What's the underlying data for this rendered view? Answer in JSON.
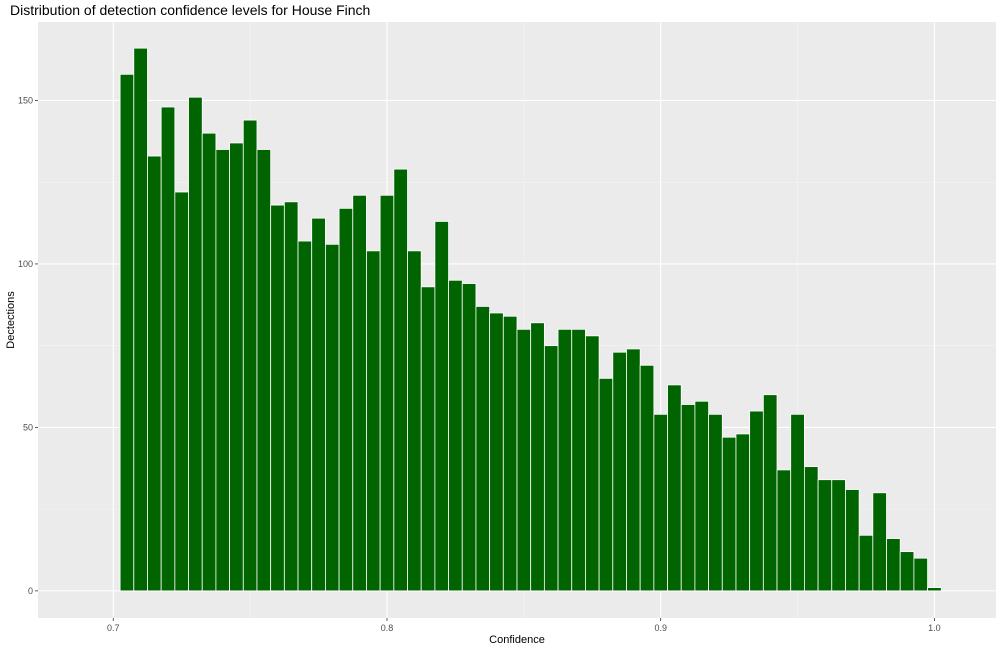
{
  "chart_data": {
    "type": "bar",
    "title": "Distribution of detection confidence levels for House Finch",
    "xlabel": "Confidence",
    "ylabel": "Dectections",
    "xlim": [
      0.6725,
      1.0225
    ],
    "ylim": [
      -8.3,
      174
    ],
    "x_ticks": [
      "0.7",
      "0.8",
      "0.9",
      "1.0"
    ],
    "x_tick_values": [
      0.7,
      0.8,
      0.9,
      1.0
    ],
    "y_ticks": [
      "0",
      "50",
      "100",
      "150"
    ],
    "y_tick_values": [
      0,
      50,
      100,
      150
    ],
    "bin_width": 0.005,
    "bin_start": 0.7025,
    "values": [
      158,
      166,
      133,
      148,
      122,
      151,
      140,
      135,
      137,
      144,
      135,
      118,
      119,
      107,
      114,
      106,
      117,
      121,
      104,
      121,
      129,
      104,
      93,
      113,
      95,
      94,
      87,
      85,
      84,
      80,
      82,
      75,
      80,
      80,
      78,
      65,
      73,
      74,
      69,
      54,
      63,
      57,
      58,
      54,
      47,
      48,
      55,
      60,
      37,
      54,
      38,
      34,
      34,
      31,
      17,
      30,
      16,
      12,
      10,
      1
    ],
    "bar_color": "#006400",
    "panel_background": "#ebebeb",
    "grid": true,
    "legend": "none"
  }
}
